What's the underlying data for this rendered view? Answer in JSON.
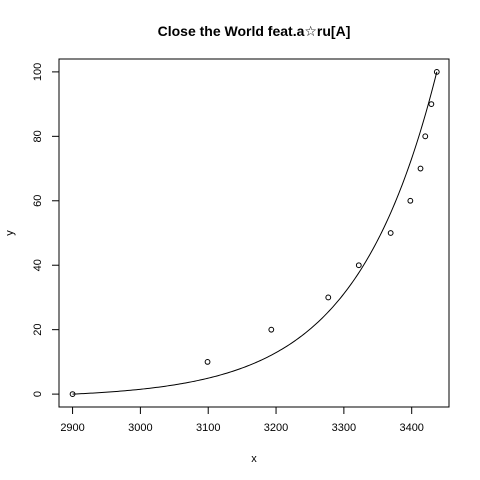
{
  "chart_data": {
    "type": "scatter",
    "title": "Close the World feat.a☆ru[A]",
    "xlabel": "x",
    "ylabel": "y",
    "xlim": [
      2880,
      3455
    ],
    "ylim": [
      -4,
      104
    ],
    "xticks": [
      2900,
      3000,
      3100,
      3200,
      3300,
      3400
    ],
    "yticks": [
      0,
      20,
      40,
      60,
      80,
      100
    ],
    "grid": false,
    "series": [
      {
        "points": [
          {
            "x": 2900,
            "y": 0
          },
          {
            "x": 3099,
            "y": 10
          },
          {
            "x": 3193,
            "y": 20
          },
          {
            "x": 3277,
            "y": 30
          },
          {
            "x": 3322,
            "y": 40
          },
          {
            "x": 3369,
            "y": 50
          },
          {
            "x": 3398,
            "y": 60
          },
          {
            "x": 3413,
            "y": 70
          },
          {
            "x": 3420,
            "y": 80
          },
          {
            "x": 3429,
            "y": 90
          },
          {
            "x": 3437,
            "y": 100
          }
        ]
      }
    ],
    "fit_curve": {
      "type": "line",
      "x_range": [
        2900,
        3437
      ],
      "function": "100*((exp((x-2900)/120)-1)/(exp((3437-2900)/120)-1))"
    }
  }
}
